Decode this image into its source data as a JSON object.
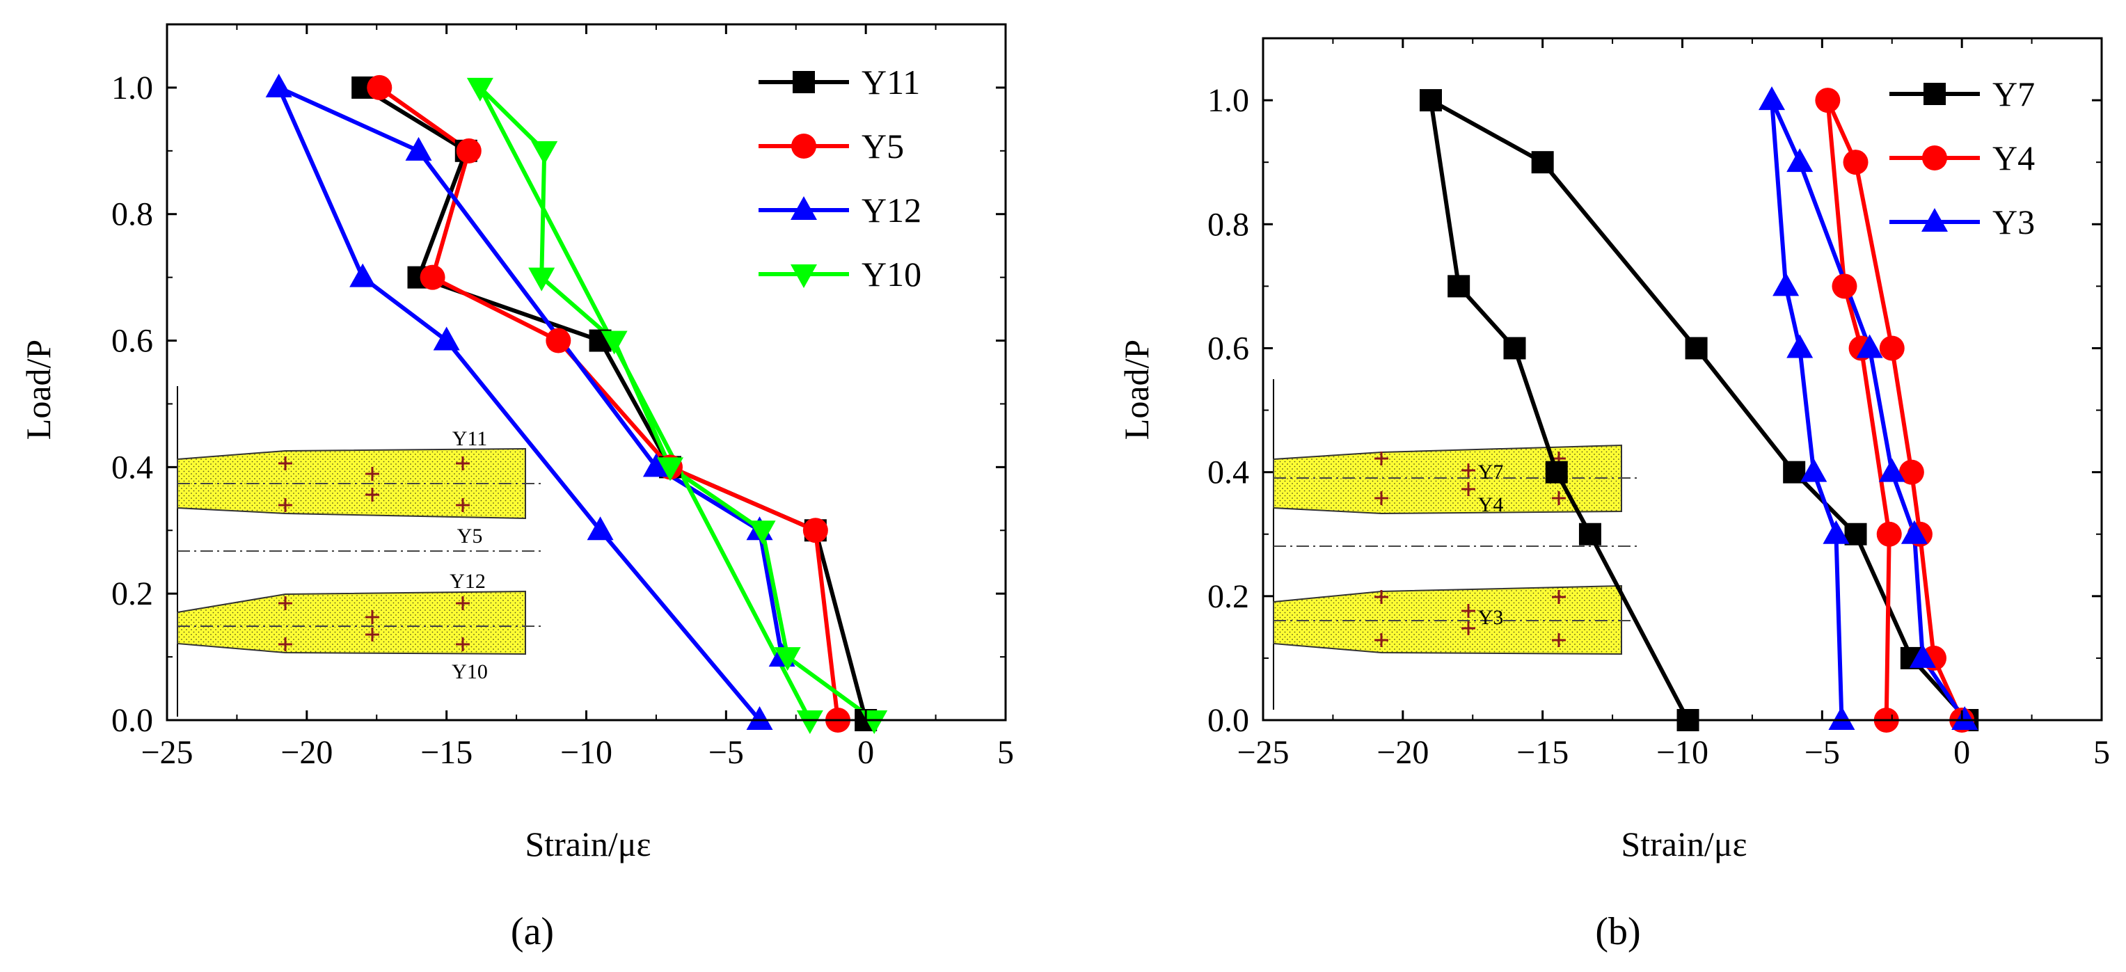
{
  "chart_data": [
    {
      "type": "line",
      "panel_label": "(a)",
      "xlabel": "Strain/με",
      "ylabel": "Load/P",
      "xlim": [
        -25,
        5
      ],
      "ylim": [
        0,
        1.1
      ],
      "xticks": [
        -25,
        -20,
        -15,
        -10,
        -5,
        0,
        5
      ],
      "xtick_labels": [
        "−25",
        "−20",
        "−15",
        "−10",
        "−5",
        "0",
        "5"
      ],
      "yticks": [
        0,
        0.2,
        0.4,
        0.6,
        0.8,
        1.0
      ],
      "ytick_labels": [
        "0.0",
        "0.2",
        "0.4",
        "0.6",
        "0.8",
        "1.0"
      ],
      "legend": "top-right",
      "series": [
        {
          "name": "Y11",
          "color": "#000000",
          "marker": "square",
          "x": [
            0.0,
            -1.8,
            -7.0,
            -9.5,
            -16.0,
            -14.3,
            -18.0
          ],
          "y": [
            0.0,
            0.3,
            0.4,
            0.6,
            0.7,
            0.9,
            1.0
          ]
        },
        {
          "name": "Y5",
          "color": "#ff0000",
          "marker": "circle",
          "x": [
            -1.0,
            -1.8,
            -7.0,
            -11.0,
            -15.5,
            -14.2,
            -17.4
          ],
          "y": [
            0.0,
            0.3,
            0.4,
            0.6,
            0.7,
            0.9,
            1.0
          ]
        },
        {
          "name": "Y12",
          "color": "#0000ff",
          "marker": "triangle-up",
          "x": [
            -3.8,
            -9.5,
            -15.0,
            -18.0,
            -21.0,
            -16.0,
            -7.5,
            -3.8,
            -3.0
          ],
          "y": [
            0.0,
            0.3,
            0.6,
            0.7,
            1.0,
            0.9,
            0.4,
            0.3,
            0.1
          ]
        },
        {
          "name": "Y10",
          "color": "#00ff00",
          "marker": "triangle-down",
          "x": [
            0.3,
            -2.8,
            -3.7,
            -7.0,
            -9.0,
            -11.6,
            -11.5,
            -13.8,
            -2.0
          ],
          "y": [
            0.0,
            0.1,
            0.3,
            0.4,
            0.6,
            0.7,
            0.9,
            1.0,
            0.0
          ]
        }
      ],
      "inset_labels": [
        "Y11",
        "Y5",
        "Y12",
        "Y10"
      ]
    },
    {
      "type": "line",
      "panel_label": "(b)",
      "xlabel": "Strain/με",
      "ylabel": "Load/P",
      "xlim": [
        -25,
        5
      ],
      "ylim": [
        0,
        1.1
      ],
      "xticks": [
        -25,
        -20,
        -15,
        -10,
        -5,
        0,
        5
      ],
      "xtick_labels": [
        "−25",
        "−20",
        "−15",
        "−10",
        "−5",
        "0",
        "5"
      ],
      "yticks": [
        0,
        0.2,
        0.4,
        0.6,
        0.8,
        1.0
      ],
      "ytick_labels": [
        "0.0",
        "0.2",
        "0.4",
        "0.6",
        "0.8",
        "1.0"
      ],
      "legend": "top-right",
      "series": [
        {
          "name": "Y7",
          "color": "#000000",
          "marker": "square",
          "x": [
            -9.8,
            -13.3,
            -14.5,
            -16.0,
            -18.0,
            -19.0,
            -15.0,
            -9.5,
            -6.0,
            -3.8,
            -1.8,
            0.2
          ],
          "y": [
            0.0,
            0.3,
            0.4,
            0.6,
            0.7,
            1.0,
            0.9,
            0.6,
            0.4,
            0.3,
            0.1,
            0.0
          ]
        },
        {
          "name": "Y4",
          "color": "#ff0000",
          "marker": "circle",
          "x": [
            -2.7,
            -2.6,
            -3.6,
            -4.2,
            -4.8,
            -3.8,
            -2.5,
            -1.8,
            -1.5,
            -1.0,
            0.0
          ],
          "y": [
            0.0,
            0.3,
            0.6,
            0.7,
            1.0,
            0.9,
            0.6,
            0.4,
            0.3,
            0.1,
            0.0
          ]
        },
        {
          "name": "Y3",
          "color": "#0000ff",
          "marker": "triangle-up",
          "x": [
            -4.3,
            -4.5,
            -5.3,
            -5.8,
            -6.3,
            -6.8,
            -5.8,
            -3.3,
            -2.5,
            -1.7,
            -1.4,
            0.1
          ],
          "y": [
            0.0,
            0.3,
            0.4,
            0.6,
            0.7,
            1.0,
            0.9,
            0.6,
            0.4,
            0.3,
            0.1,
            0.0
          ]
        }
      ],
      "inset_labels": [
        "Y7",
        "Y4",
        "Y3"
      ]
    }
  ]
}
